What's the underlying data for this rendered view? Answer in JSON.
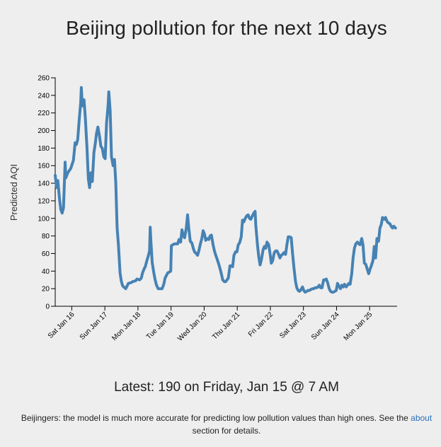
{
  "page": {
    "latest_text": "Latest: 190 on Friday, Jan 15 @ 7 AM",
    "note_before": "Beijingers: the model is much more accurate for predicting low pollution values than high ones. See the",
    "note_link": "about",
    "note_after": "section for details."
  },
  "colors": {
    "background": "#eeeeee",
    "line": "#4682b4",
    "link": "#2a6fb5"
  },
  "chart_data": {
    "type": "line",
    "title": "Beijing pollution for the next 10 days",
    "ylabel": "Predicted AQI",
    "xlabel": "",
    "ylim": [
      0,
      260
    ],
    "yticks": [
      0,
      20,
      40,
      60,
      80,
      100,
      120,
      140,
      160,
      180,
      200,
      220,
      240,
      260
    ],
    "x_unit": "days",
    "xlim": [
      0,
      10.33
    ],
    "xticks": [
      {
        "x": 0.5,
        "label": "Sat Jan 16"
      },
      {
        "x": 1.5,
        "label": "Sun Jan 17"
      },
      {
        "x": 2.5,
        "label": "Mon Jan 18"
      },
      {
        "x": 3.5,
        "label": "Tue Jan 19"
      },
      {
        "x": 4.5,
        "label": "Wed Jan 20"
      },
      {
        "x": 5.5,
        "label": "Thu Jan 21"
      },
      {
        "x": 6.5,
        "label": "Fri Jan 22"
      },
      {
        "x": 7.5,
        "label": "Sat Jan 23"
      },
      {
        "x": 8.5,
        "label": "Sun Jan 24"
      },
      {
        "x": 9.5,
        "label": "Mon Jan 25"
      }
    ],
    "grid": false,
    "legend": "none",
    "series": [
      {
        "values": [
          [
            0.0,
            149
          ],
          [
            0.04,
            135
          ],
          [
            0.08,
            143
          ],
          [
            0.13,
            122
          ],
          [
            0.17,
            110
          ],
          [
            0.21,
            106
          ],
          [
            0.25,
            112
          ],
          [
            0.3,
            164
          ],
          [
            0.32,
            146
          ],
          [
            0.38,
            152
          ],
          [
            0.47,
            157
          ],
          [
            0.55,
            166
          ],
          [
            0.6,
            186
          ],
          [
            0.64,
            184
          ],
          [
            0.68,
            190
          ],
          [
            0.72,
            210
          ],
          [
            0.77,
            232
          ],
          [
            0.79,
            249
          ],
          [
            0.82,
            228
          ],
          [
            0.87,
            235
          ],
          [
            0.91,
            215
          ],
          [
            0.96,
            180
          ],
          [
            1.0,
            145
          ],
          [
            1.04,
            135
          ],
          [
            1.08,
            152
          ],
          [
            1.12,
            142
          ],
          [
            1.17,
            175
          ],
          [
            1.21,
            185
          ],
          [
            1.25,
            197
          ],
          [
            1.29,
            204
          ],
          [
            1.34,
            193
          ],
          [
            1.38,
            182
          ],
          [
            1.42,
            180
          ],
          [
            1.47,
            170
          ],
          [
            1.51,
            168
          ],
          [
            1.55,
            208
          ],
          [
            1.6,
            230
          ],
          [
            1.62,
            244
          ],
          [
            1.66,
            223
          ],
          [
            1.7,
            170
          ],
          [
            1.75,
            160
          ],
          [
            1.79,
            167
          ],
          [
            1.83,
            140
          ],
          [
            1.87,
            90
          ],
          [
            1.91,
            70
          ],
          [
            1.96,
            38
          ],
          [
            2.0,
            28
          ],
          [
            2.04,
            23
          ],
          [
            2.13,
            20
          ],
          [
            2.17,
            23
          ],
          [
            2.21,
            26
          ],
          [
            2.3,
            27
          ],
          [
            2.34,
            28
          ],
          [
            2.43,
            29
          ],
          [
            2.47,
            31
          ],
          [
            2.55,
            30
          ],
          [
            2.6,
            32
          ],
          [
            2.64,
            38
          ],
          [
            2.68,
            42
          ],
          [
            2.72,
            45
          ],
          [
            2.77,
            52
          ],
          [
            2.81,
            57
          ],
          [
            2.85,
            63
          ],
          [
            2.87,
            90
          ],
          [
            2.89,
            75
          ],
          [
            2.93,
            50
          ],
          [
            2.98,
            38
          ],
          [
            3.02,
            30
          ],
          [
            3.06,
            24
          ],
          [
            3.11,
            20
          ],
          [
            3.15,
            20
          ],
          [
            3.23,
            20
          ],
          [
            3.28,
            25
          ],
          [
            3.32,
            32
          ],
          [
            3.36,
            35
          ],
          [
            3.4,
            38
          ],
          [
            3.45,
            39
          ],
          [
            3.49,
            40
          ],
          [
            3.51,
            69
          ],
          [
            3.6,
            71
          ],
          [
            3.7,
            71
          ],
          [
            3.74,
            76
          ],
          [
            3.79,
            73
          ],
          [
            3.83,
            87
          ],
          [
            3.87,
            80
          ],
          [
            3.91,
            78
          ],
          [
            3.96,
            89
          ],
          [
            4.0,
            104
          ],
          [
            4.04,
            87
          ],
          [
            4.08,
            74
          ],
          [
            4.13,
            72
          ],
          [
            4.17,
            66
          ],
          [
            4.21,
            62
          ],
          [
            4.26,
            60
          ],
          [
            4.3,
            58
          ],
          [
            4.34,
            63
          ],
          [
            4.38,
            70
          ],
          [
            4.43,
            77
          ],
          [
            4.47,
            86
          ],
          [
            4.51,
            82
          ],
          [
            4.55,
            75
          ],
          [
            4.6,
            77
          ],
          [
            4.64,
            76
          ],
          [
            4.68,
            80
          ],
          [
            4.72,
            81
          ],
          [
            4.77,
            70
          ],
          [
            4.81,
            63
          ],
          [
            4.85,
            58
          ],
          [
            4.89,
            54
          ],
          [
            4.94,
            48
          ],
          [
            4.98,
            43
          ],
          [
            5.02,
            37
          ],
          [
            5.06,
            30
          ],
          [
            5.11,
            28
          ],
          [
            5.15,
            28
          ],
          [
            5.19,
            30
          ],
          [
            5.23,
            32
          ],
          [
            5.28,
            46
          ],
          [
            5.32,
            46
          ],
          [
            5.36,
            45
          ],
          [
            5.4,
            58
          ],
          [
            5.45,
            62
          ],
          [
            5.49,
            62
          ],
          [
            5.53,
            70
          ],
          [
            5.57,
            72
          ],
          [
            5.62,
            79
          ],
          [
            5.66,
            98
          ],
          [
            5.7,
            96
          ],
          [
            5.74,
            100
          ],
          [
            5.79,
            103
          ],
          [
            5.83,
            104
          ],
          [
            5.87,
            100
          ],
          [
            5.91,
            99
          ],
          [
            5.96,
            103
          ],
          [
            6.0,
            106
          ],
          [
            6.04,
            108
          ],
          [
            6.06,
            93
          ],
          [
            6.11,
            70
          ],
          [
            6.15,
            56
          ],
          [
            6.19,
            47
          ],
          [
            6.23,
            53
          ],
          [
            6.28,
            64
          ],
          [
            6.32,
            68
          ],
          [
            6.36,
            66
          ],
          [
            6.4,
            73
          ],
          [
            6.45,
            70
          ],
          [
            6.49,
            60
          ],
          [
            6.53,
            49
          ],
          [
            6.57,
            52
          ],
          [
            6.62,
            61
          ],
          [
            6.66,
            63
          ],
          [
            6.7,
            63
          ],
          [
            6.74,
            60
          ],
          [
            6.79,
            55
          ],
          [
            6.83,
            58
          ],
          [
            6.87,
            59
          ],
          [
            6.91,
            61
          ],
          [
            6.96,
            59
          ],
          [
            7.0,
            70
          ],
          [
            7.04,
            79
          ],
          [
            7.09,
            79
          ],
          [
            7.13,
            78
          ],
          [
            7.17,
            61
          ],
          [
            7.21,
            45
          ],
          [
            7.26,
            28
          ],
          [
            7.3,
            21
          ],
          [
            7.34,
            18
          ],
          [
            7.38,
            17
          ],
          [
            7.43,
            19
          ],
          [
            7.47,
            22
          ],
          [
            7.51,
            18
          ],
          [
            7.55,
            16
          ],
          [
            7.6,
            17
          ],
          [
            7.64,
            18
          ],
          [
            7.68,
            18
          ],
          [
            7.72,
            19
          ],
          [
            7.77,
            20
          ],
          [
            7.81,
            20
          ],
          [
            7.85,
            21
          ],
          [
            7.89,
            21
          ],
          [
            7.94,
            22
          ],
          [
            7.98,
            24
          ],
          [
            8.02,
            21
          ],
          [
            8.06,
            21
          ],
          [
            8.11,
            30
          ],
          [
            8.15,
            30
          ],
          [
            8.19,
            31
          ],
          [
            8.23,
            27
          ],
          [
            8.28,
            20
          ],
          [
            8.32,
            17
          ],
          [
            8.36,
            16
          ],
          [
            8.4,
            16
          ],
          [
            8.45,
            17
          ],
          [
            8.49,
            18
          ],
          [
            8.53,
            26
          ],
          [
            8.57,
            23
          ],
          [
            8.62,
            20
          ],
          [
            8.66,
            24
          ],
          [
            8.7,
            22
          ],
          [
            8.74,
            25
          ],
          [
            8.79,
            22
          ],
          [
            8.83,
            24
          ],
          [
            8.87,
            26
          ],
          [
            8.91,
            25
          ],
          [
            8.96,
            37
          ],
          [
            9.0,
            55
          ],
          [
            9.04,
            66
          ],
          [
            9.08,
            71
          ],
          [
            9.13,
            73
          ],
          [
            9.17,
            71
          ],
          [
            9.21,
            70
          ],
          [
            9.26,
            77
          ],
          [
            9.3,
            70
          ],
          [
            9.34,
            49
          ],
          [
            9.38,
            48
          ],
          [
            9.43,
            42
          ],
          [
            9.47,
            37
          ],
          [
            9.51,
            42
          ],
          [
            9.55,
            46
          ],
          [
            9.6,
            52
          ],
          [
            9.64,
            68
          ],
          [
            9.68,
            55
          ],
          [
            9.72,
            77
          ],
          [
            9.77,
            74
          ],
          [
            9.81,
            89
          ],
          [
            9.85,
            93
          ],
          [
            9.89,
            101
          ],
          [
            9.94,
            99
          ],
          [
            9.98,
            101
          ],
          [
            10.02,
            97
          ],
          [
            10.06,
            95
          ],
          [
            10.11,
            94
          ],
          [
            10.15,
            91
          ],
          [
            10.19,
            89
          ],
          [
            10.23,
            91
          ],
          [
            10.28,
            89
          ]
        ]
      }
    ]
  }
}
